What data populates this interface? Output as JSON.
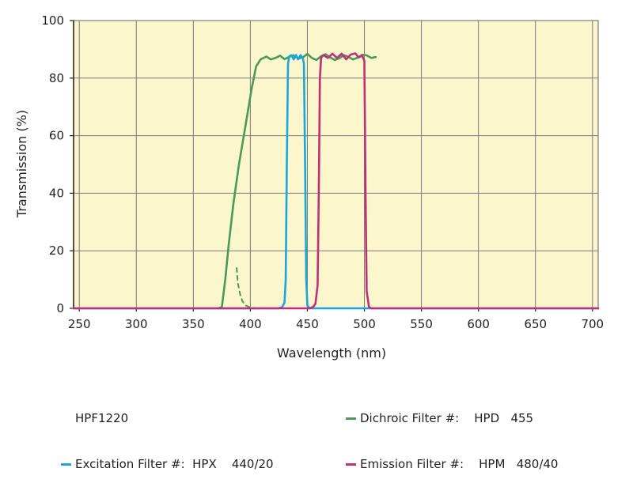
{
  "chart_data": {
    "type": "line",
    "xlabel": "Wavelength (nm)",
    "ylabel": "Transmission (%)",
    "xlim": [
      245,
      705
    ],
    "ylim": [
      0,
      100
    ],
    "x_ticks": [
      250,
      300,
      350,
      400,
      450,
      500,
      550,
      600,
      650,
      700
    ],
    "y_ticks": [
      0,
      20,
      40,
      60,
      80,
      100
    ],
    "x_tick_labels": [
      "250",
      "300",
      "350",
      "400",
      "450",
      "500",
      "550",
      "600",
      "650",
      "700"
    ],
    "y_tick_labels": [
      "0",
      "20",
      "40",
      "60",
      "80",
      "100"
    ],
    "grid": true,
    "background_color": "#fbf6cb",
    "grid_color": "#7a7a7a",
    "series": [
      {
        "name": "Dichroic Filter #:   HPD  455",
        "color": "#4a9a5a",
        "style": "solid",
        "points": [
          [
            372,
            0
          ],
          [
            375,
            0.5
          ],
          [
            378,
            10
          ],
          [
            381,
            22
          ],
          [
            385,
            36
          ],
          [
            390,
            50
          ],
          [
            396,
            64
          ],
          [
            401,
            76
          ],
          [
            405,
            84
          ],
          [
            409,
            86.5
          ],
          [
            414,
            87.5
          ],
          [
            418,
            86.5
          ],
          [
            422,
            87
          ],
          [
            426,
            87.8
          ],
          [
            430,
            86.6
          ],
          [
            434,
            87.4
          ],
          [
            438,
            87.9
          ],
          [
            442,
            86.8
          ],
          [
            446,
            87.2
          ],
          [
            450,
            88.4
          ],
          [
            454,
            87
          ],
          [
            458,
            86.3
          ],
          [
            462,
            87.6
          ],
          [
            466,
            88.3
          ],
          [
            470,
            87.2
          ],
          [
            474,
            86.3
          ],
          [
            478,
            86.9
          ],
          [
            482,
            88
          ],
          [
            486,
            87.4
          ],
          [
            490,
            86.5
          ],
          [
            494,
            87.1
          ],
          [
            498,
            88.1
          ],
          [
            502,
            87.9
          ],
          [
            506,
            87
          ],
          [
            510,
            87.3
          ]
        ]
      },
      {
        "name": "Dichroic Filter dashed tail",
        "color": "#4a9a5a",
        "style": "dashed",
        "points": [
          [
            388,
            14
          ],
          [
            389,
            9
          ],
          [
            391,
            5
          ],
          [
            393,
            2.5
          ],
          [
            396,
            1
          ],
          [
            400,
            0.3
          ],
          [
            405,
            0
          ]
        ]
      },
      {
        "name": "Excitation Filter #:  HPX   440/20",
        "color": "#1aa6e0",
        "style": "solid",
        "points": [
          [
            245,
            0
          ],
          [
            425,
            0
          ],
          [
            428,
            0.5
          ],
          [
            430,
            2
          ],
          [
            431,
            10
          ],
          [
            432,
            50
          ],
          [
            433,
            85
          ],
          [
            434,
            87.5
          ],
          [
            436,
            88
          ],
          [
            438,
            86.5
          ],
          [
            440,
            88
          ],
          [
            442,
            86.5
          ],
          [
            444,
            88
          ],
          [
            446,
            87
          ],
          [
            447,
            85
          ],
          [
            448,
            50
          ],
          [
            449,
            10
          ],
          [
            450,
            1
          ],
          [
            452,
            0
          ],
          [
            705,
            0
          ]
        ]
      },
      {
        "name": "Emission Filter #:    HPM   480/40",
        "color": "#c0307a",
        "style": "solid",
        "points": [
          [
            245,
            0
          ],
          [
            452,
            0
          ],
          [
            455,
            0.5
          ],
          [
            457,
            1.5
          ],
          [
            459,
            8
          ],
          [
            460,
            40
          ],
          [
            461,
            80
          ],
          [
            462,
            87
          ],
          [
            464,
            88
          ],
          [
            468,
            87
          ],
          [
            472,
            88.5
          ],
          [
            476,
            87
          ],
          [
            480,
            88.5
          ],
          [
            484,
            86.5
          ],
          [
            488,
            88.2
          ],
          [
            492,
            88.6
          ],
          [
            495,
            87.2
          ],
          [
            498,
            87.8
          ],
          [
            500,
            86
          ],
          [
            501,
            40
          ],
          [
            502,
            6
          ],
          [
            504,
            0.5
          ],
          [
            506,
            0
          ],
          [
            705,
            0
          ]
        ]
      }
    ]
  },
  "legend": {
    "part_number": "HPF1220",
    "dichroic": "Dichroic Filter #:    HPD   455",
    "excitation": "Excitation Filter #:  HPX    440/20",
    "emission": "Emission Filter #:    HPM   480/40"
  }
}
